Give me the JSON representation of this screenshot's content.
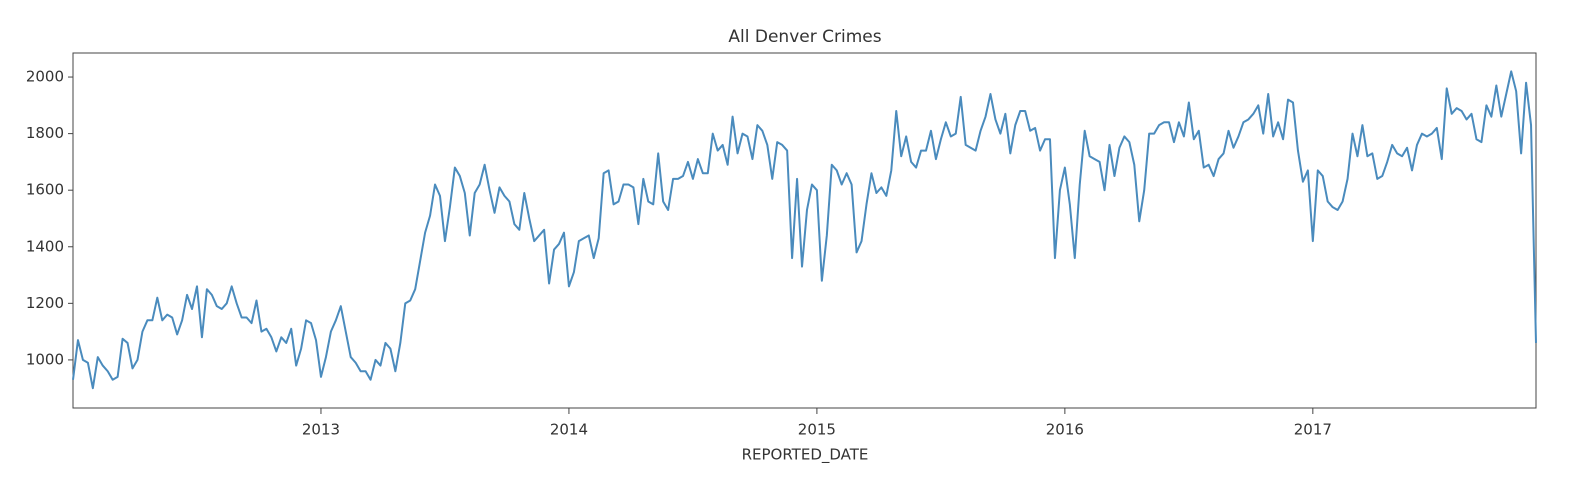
{
  "chart_data": {
    "type": "line",
    "title": "All Denver Crimes",
    "x_label": "REPORTED_DATE",
    "x": [
      2012,
      2012.02,
      2012.04,
      2012.06,
      2012.08,
      2012.1,
      2012.12,
      2012.14,
      2012.16,
      2012.18,
      2012.2,
      2012.22,
      2012.24,
      2012.26,
      2012.28,
      2012.3,
      2012.32,
      2012.34,
      2012.36,
      2012.38,
      2012.4,
      2012.42,
      2012.44,
      2012.46,
      2012.48,
      2012.5,
      2012.52,
      2012.54,
      2012.56,
      2012.58,
      2012.6,
      2012.62,
      2012.64,
      2012.66,
      2012.68,
      2012.7,
      2012.72,
      2012.74,
      2012.76,
      2012.78,
      2012.8,
      2012.82,
      2012.84,
      2012.86,
      2012.88,
      2012.9,
      2012.92,
      2012.94,
      2012.96,
      2012.98,
      2013,
      2013.02,
      2013.04,
      2013.06,
      2013.08,
      2013.1,
      2013.12,
      2013.14,
      2013.16,
      2013.18,
      2013.2,
      2013.22,
      2013.24,
      2013.26,
      2013.28,
      2013.3,
      2013.32,
      2013.34,
      2013.36,
      2013.38,
      2013.4,
      2013.42,
      2013.44,
      2013.46,
      2013.48,
      2013.5,
      2013.52,
      2013.54,
      2013.56,
      2013.58,
      2013.6,
      2013.62,
      2013.64,
      2013.66,
      2013.68,
      2013.7,
      2013.72,
      2013.74,
      2013.76,
      2013.78,
      2013.8,
      2013.82,
      2013.84,
      2013.86,
      2013.88,
      2013.9,
      2013.92,
      2013.94,
      2013.96,
      2013.98,
      2014,
      2014.02,
      2014.04,
      2014.06,
      2014.08,
      2014.1,
      2014.12,
      2014.14,
      2014.16,
      2014.18,
      2014.2,
      2014.22,
      2014.24,
      2014.26,
      2014.28,
      2014.3,
      2014.32,
      2014.34,
      2014.36,
      2014.38,
      2014.4,
      2014.42,
      2014.44,
      2014.46,
      2014.48,
      2014.5,
      2014.52,
      2014.54,
      2014.56,
      2014.58,
      2014.6,
      2014.62,
      2014.64,
      2014.66,
      2014.68,
      2014.7,
      2014.72,
      2014.74,
      2014.76,
      2014.78,
      2014.8,
      2014.82,
      2014.84,
      2014.86,
      2014.88,
      2014.9,
      2014.92,
      2014.94,
      2014.96,
      2014.98,
      2015,
      2015.02,
      2015.04,
      2015.06,
      2015.08,
      2015.1,
      2015.12,
      2015.14,
      2015.16,
      2015.18,
      2015.2,
      2015.22,
      2015.24,
      2015.26,
      2015.28,
      2015.3,
      2015.32,
      2015.34,
      2015.36,
      2015.38,
      2015.4,
      2015.42,
      2015.44,
      2015.46,
      2015.48,
      2015.5,
      2015.52,
      2015.54,
      2015.56,
      2015.58,
      2015.6,
      2015.62,
      2015.64,
      2015.66,
      2015.68,
      2015.7,
      2015.72,
      2015.74,
      2015.76,
      2015.78,
      2015.8,
      2015.82,
      2015.84,
      2015.86,
      2015.88,
      2015.9,
      2015.92,
      2015.94,
      2015.96,
      2015.98,
      2016,
      2016.02,
      2016.04,
      2016.06,
      2016.08,
      2016.1,
      2016.12,
      2016.14,
      2016.16,
      2016.18,
      2016.2,
      2016.22,
      2016.24,
      2016.26,
      2016.28,
      2016.3,
      2016.32,
      2016.34,
      2016.36,
      2016.38,
      2016.4,
      2016.42,
      2016.44,
      2016.46,
      2016.48,
      2016.5,
      2016.52,
      2016.54,
      2016.56,
      2016.58,
      2016.6,
      2016.62,
      2016.64,
      2016.66,
      2016.68,
      2016.7,
      2016.72,
      2016.74,
      2016.76,
      2016.78,
      2016.8,
      2016.82,
      2016.84,
      2016.86,
      2016.88,
      2016.9,
      2016.92,
      2016.94,
      2016.96,
      2016.98,
      2017,
      2017.02,
      2017.04,
      2017.06,
      2017.08,
      2017.1,
      2017.12,
      2017.14,
      2017.16,
      2017.18,
      2017.2,
      2017.22,
      2017.24,
      2017.26,
      2017.28,
      2017.3,
      2017.32,
      2017.34,
      2017.36,
      2017.38,
      2017.4,
      2017.42,
      2017.44,
      2017.46,
      2017.48,
      2017.5,
      2017.52,
      2017.54,
      2017.56,
      2017.58,
      2017.6,
      2017.62,
      2017.64,
      2017.66,
      2017.68,
      2017.7,
      2017.72,
      2017.74,
      2017.76,
      2017.78,
      2017.8,
      2017.82,
      2017.84,
      2017.86,
      2017.88,
      2017.9
    ],
    "values": [
      930,
      1070,
      1000,
      990,
      900,
      1010,
      980,
      960,
      930,
      940,
      1075,
      1060,
      970,
      1000,
      1100,
      1140,
      1140,
      1220,
      1140,
      1160,
      1150,
      1090,
      1140,
      1230,
      1180,
      1260,
      1080,
      1250,
      1230,
      1190,
      1180,
      1200,
      1260,
      1200,
      1150,
      1150,
      1130,
      1210,
      1100,
      1110,
      1080,
      1030,
      1080,
      1060,
      1110,
      980,
      1040,
      1140,
      1130,
      1070,
      940,
      1010,
      1100,
      1140,
      1190,
      1100,
      1010,
      990,
      960,
      960,
      930,
      1000,
      980,
      1060,
      1040,
      960,
      1060,
      1200,
      1210,
      1250,
      1350,
      1450,
      1510,
      1620,
      1580,
      1420,
      1540,
      1680,
      1650,
      1590,
      1440,
      1590,
      1620,
      1690,
      1600,
      1520,
      1610,
      1580,
      1560,
      1480,
      1460,
      1590,
      1500,
      1420,
      1440,
      1460,
      1270,
      1390,
      1410,
      1450,
      1260,
      1310,
      1420,
      1430,
      1440,
      1360,
      1430,
      1660,
      1670,
      1550,
      1560,
      1620,
      1620,
      1610,
      1480,
      1640,
      1560,
      1550,
      1730,
      1560,
      1530,
      1640,
      1640,
      1650,
      1700,
      1640,
      1710,
      1660,
      1660,
      1800,
      1740,
      1760,
      1690,
      1860,
      1730,
      1800,
      1790,
      1710,
      1830,
      1810,
      1760,
      1640,
      1770,
      1760,
      1740,
      1360,
      1640,
      1330,
      1530,
      1620,
      1600,
      1280,
      1440,
      1690,
      1670,
      1620,
      1660,
      1620,
      1380,
      1420,
      1550,
      1660,
      1590,
      1610,
      1580,
      1670,
      1880,
      1720,
      1790,
      1700,
      1680,
      1740,
      1740,
      1810,
      1710,
      1780,
      1840,
      1790,
      1800,
      1930,
      1760,
      1750,
      1740,
      1810,
      1860,
      1940,
      1850,
      1800,
      1870,
      1730,
      1830,
      1880,
      1880,
      1810,
      1820,
      1740,
      1780,
      1780,
      1360,
      1600,
      1680,
      1550,
      1360,
      1620,
      1810,
      1720,
      1710,
      1700,
      1600,
      1760,
      1650,
      1750,
      1790,
      1770,
      1690,
      1490,
      1600,
      1800,
      1800,
      1830,
      1840,
      1840,
      1770,
      1840,
      1790,
      1910,
      1780,
      1810,
      1680,
      1690,
      1650,
      1710,
      1730,
      1810,
      1750,
      1790,
      1840,
      1850,
      1870,
      1900,
      1800,
      1940,
      1790,
      1840,
      1780,
      1920,
      1910,
      1740,
      1630,
      1670,
      1420,
      1670,
      1650,
      1560,
      1540,
      1530,
      1560,
      1640,
      1800,
      1720,
      1830,
      1720,
      1730,
      1640,
      1650,
      1700,
      1760,
      1730,
      1720,
      1750,
      1670,
      1760,
      1800,
      1790,
      1800,
      1820,
      1710,
      1960,
      1870,
      1890,
      1880,
      1850,
      1870,
      1780,
      1770,
      1900,
      1860,
      1970,
      1860,
      1940,
      2020,
      1950,
      1730,
      1980,
      1830,
      1060
    ],
    "color": "#4a8bbd",
    "xlim": [
      2012,
      2017.9
    ],
    "xticks": [
      2013,
      2014,
      2015,
      2016,
      2017
    ],
    "ylim": [
      830,
      2085
    ],
    "yticks": [
      1000,
      1200,
      1400,
      1600,
      1800,
      2000
    ]
  }
}
